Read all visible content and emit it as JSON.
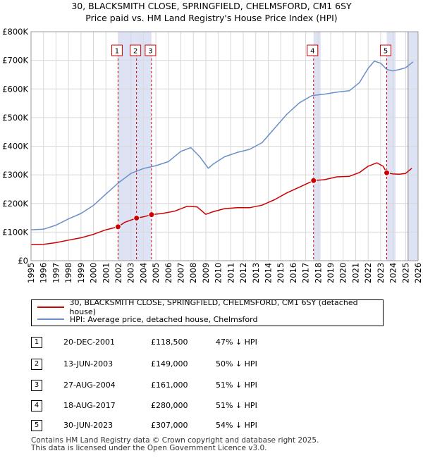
{
  "title_line1": "30, BLACKSMITH CLOSE, SPRINGFIELD, CHELMSFORD, CM1 6SY",
  "title_line2": "Price paid vs. HM Land Registry's House Price Index (HPI)",
  "chart_data": {
    "type": "line",
    "title": "30, BLACKSMITH CLOSE, SPRINGFIELD, CHELMSFORD, CM1 6SY — Price paid vs. HM Land Registry's House Price Index (HPI)",
    "xlim": [
      1995,
      2026
    ],
    "ylim": [
      0,
      800000
    ],
    "x_ticks": [
      "1995",
      "1996",
      "1997",
      "1998",
      "1999",
      "2000",
      "2001",
      "2002",
      "2003",
      "2004",
      "2005",
      "2006",
      "2007",
      "2008",
      "2009",
      "2010",
      "2011",
      "2012",
      "2013",
      "2014",
      "2015",
      "2016",
      "2017",
      "2018",
      "2019",
      "2020",
      "2021",
      "2022",
      "2023",
      "2024",
      "2025",
      "2026"
    ],
    "y_ticks": [
      {
        "value": 0,
        "label": "£0"
      },
      {
        "value": 100000,
        "label": "£100K"
      },
      {
        "value": 200000,
        "label": "£200K"
      },
      {
        "value": 300000,
        "label": "£300K"
      },
      {
        "value": 400000,
        "label": "£400K"
      },
      {
        "value": 500000,
        "label": "£500K"
      },
      {
        "value": 600000,
        "label": "£600K"
      },
      {
        "value": 700000,
        "label": "£700K"
      },
      {
        "value": 800000,
        "label": "£800K"
      }
    ],
    "series": [
      {
        "name": "30, BLACKSMITH CLOSE, SPRINGFIELD, CHELMSFORD, CM1 6SY (detached house)",
        "color": "#cc0000",
        "x": [
          1995,
          1996,
          1997,
          1998,
          1999,
          2000,
          2001,
          2001.97,
          2002.5,
          2003.45,
          2004,
          2004.65,
          2005.5,
          2006.5,
          2007.5,
          2008.3,
          2009.0,
          2009.5,
          2010.5,
          2011.5,
          2012.5,
          2013.5,
          2014.5,
          2015.5,
          2016.5,
          2017.63,
          2018.5,
          2019.5,
          2020.5,
          2021.3,
          2022.0,
          2022.7,
          2023.2,
          2023.5,
          2024.0,
          2024.5,
          2025.0,
          2025.5
        ],
        "y": [
          56000,
          57000,
          63000,
          72000,
          80000,
          92000,
          108000,
          118500,
          134000,
          149000,
          153000,
          161000,
          165000,
          173000,
          190000,
          188000,
          162000,
          170000,
          182000,
          185000,
          185000,
          194000,
          213000,
          237000,
          257000,
          280000,
          283000,
          293000,
          295000,
          308000,
          330000,
          342000,
          330000,
          307000,
          303000,
          302000,
          305000,
          323000
        ]
      },
      {
        "name": "HPI: Average price, detached house, Chelmsford",
        "color": "#6a8fc9",
        "x": [
          1995,
          1996,
          1997,
          1998,
          1999,
          2000,
          2001,
          2002,
          2003,
          2004,
          2005,
          2006,
          2007,
          2007.8,
          2008.5,
          2009.2,
          2009.6,
          2010.5,
          2011.5,
          2012.5,
          2013.5,
          2014.5,
          2015.5,
          2016.5,
          2017.5,
          2018.5,
          2019.5,
          2020.5,
          2021.3,
          2022.0,
          2022.5,
          2023.0,
          2023.5,
          2024.0,
          2024.5,
          2025.0,
          2025.6
        ],
        "y": [
          108000,
          110000,
          124000,
          146000,
          165000,
          193000,
          233000,
          272000,
          305000,
          322000,
          332000,
          346000,
          382000,
          395000,
          364000,
          323000,
          338000,
          363000,
          378000,
          389000,
          412000,
          462000,
          512000,
          552000,
          577000,
          582000,
          589000,
          594000,
          622000,
          672000,
          697000,
          690000,
          668000,
          663000,
          668000,
          674000,
          695000
        ]
      }
    ],
    "sales": [
      {
        "num": "1",
        "date": "20-DEC-2001",
        "price": "£118,500",
        "hpi": "47% ↓ HPI",
        "x": 2001.97,
        "y": 118500
      },
      {
        "num": "2",
        "date": "13-JUN-2003",
        "price": "£149,000",
        "hpi": "50% ↓ HPI",
        "x": 2003.45,
        "y": 149000
      },
      {
        "num": "3",
        "date": "27-AUG-2004",
        "price": "£161,000",
        "hpi": "51% ↓ HPI",
        "x": 2004.65,
        "y": 161000
      },
      {
        "num": "4",
        "date": "18-AUG-2017",
        "price": "£280,000",
        "hpi": "51% ↓ HPI",
        "x": 2017.63,
        "y": 280000
      },
      {
        "num": "5",
        "date": "30-JUN-2023",
        "price": "£307,000",
        "hpi": "54% ↓ HPI",
        "x": 2023.49,
        "y": 307000
      }
    ],
    "shaded_periods": [
      [
        2001.97,
        2003.45
      ],
      [
        2003.45,
        2004.65
      ],
      [
        2017.63,
        2018.2
      ],
      [
        2023.49,
        2024.2
      ],
      [
        2025.2,
        2026
      ]
    ]
  },
  "legend": {
    "property": "30, BLACKSMITH CLOSE, SPRINGFIELD, CHELMSFORD, CM1 6SY (detached house)",
    "hpi": "HPI: Average price, detached house, Chelmsford",
    "property_color": "#cc0000",
    "hpi_color": "#6a8fc9"
  },
  "footer_line1": "Contains HM Land Registry data © Crown copyright and database right 2025.",
  "footer_line2": "This data is licensed under the Open Government Licence v3.0."
}
